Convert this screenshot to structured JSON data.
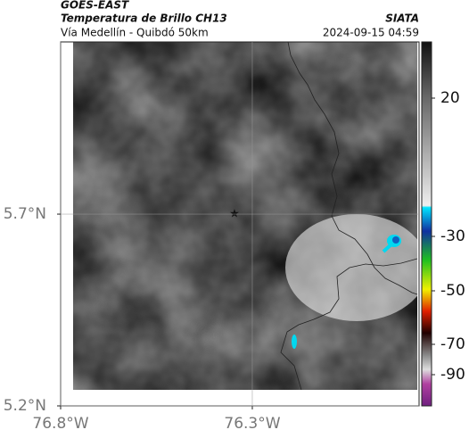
{
  "header": {
    "source": "GOES-EAST",
    "title": "Temperatura de Brillo CH13",
    "subtitle": "Vía Medellín - Quibdó 50km",
    "brand": "SIATA",
    "datetime": "2024-09-15 04:59"
  },
  "map": {
    "xlim": [
      -76.8,
      -75.865
    ],
    "ylim": [
      5.2,
      6.149
    ],
    "xticks": [
      {
        "value": -76.8,
        "label": "76.8°W"
      },
      {
        "value": -76.3,
        "label": "76.3°W"
      }
    ],
    "yticks": [
      {
        "value": 5.7,
        "label": "5.7°N"
      },
      {
        "value": 5.2,
        "label": "5.2°N"
      }
    ]
  },
  "colorbar": {
    "ticks": [
      20,
      -30,
      -50,
      -70,
      -90
    ]
  }
}
